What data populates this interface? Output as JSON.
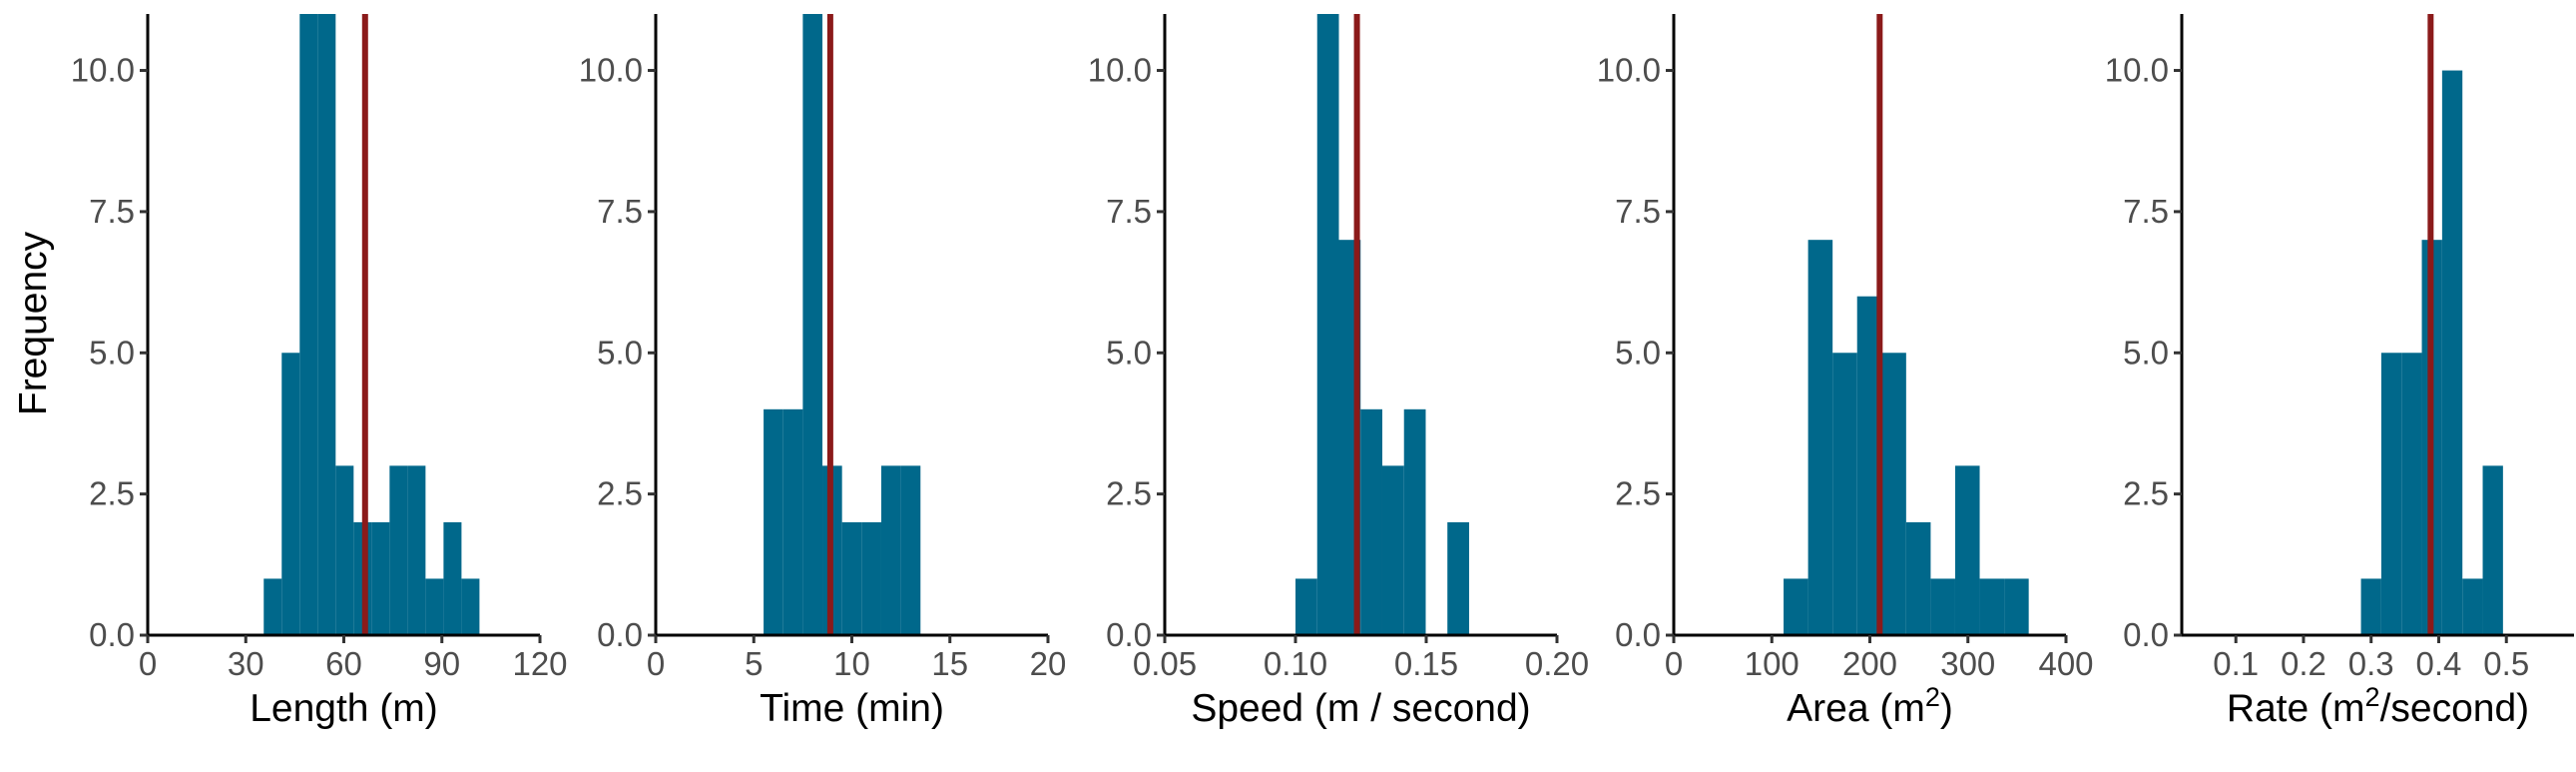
{
  "chart_data": {
    "type": "bar",
    "ylabel": "Frequency",
    "ylim": [
      0,
      11
    ],
    "yticks": [
      0,
      2.5,
      5,
      7.5,
      10
    ],
    "ytick_labels": [
      "0.0",
      "2.5",
      "5.0",
      "7.5",
      "10.0"
    ],
    "colors": {
      "bar": "#00688b",
      "reference_line": "#8b1a1a"
    },
    "panels": [
      {
        "xlabel": "Length (m)",
        "xlim": [
          0,
          120
        ],
        "xticks": [
          0,
          30,
          60,
          90,
          120
        ],
        "xtick_labels": [
          "0",
          "30",
          "60",
          "90",
          "120"
        ],
        "bin_width": 5.5,
        "bins": [
          {
            "x0": 35.5,
            "count": 1
          },
          {
            "x0": 41.0,
            "count": 5
          },
          {
            "x0": 46.5,
            "count": 11
          },
          {
            "x0": 52.0,
            "count": 11
          },
          {
            "x0": 57.5,
            "count": 3
          },
          {
            "x0": 63.0,
            "count": 2
          },
          {
            "x0": 68.5,
            "count": 2
          },
          {
            "x0": 74.0,
            "count": 3
          },
          {
            "x0": 79.5,
            "count": 3
          },
          {
            "x0": 85.0,
            "count": 1
          },
          {
            "x0": 90.5,
            "count": 2
          },
          {
            "x0": 96.0,
            "count": 1
          }
        ],
        "mean": 66.5
      },
      {
        "xlabel": "Time (min)",
        "xlim": [
          0,
          20
        ],
        "xticks": [
          0,
          5,
          10,
          15,
          20
        ],
        "xtick_labels": [
          "0",
          "5",
          "10",
          "15",
          "20"
        ],
        "bin_width": 1.0,
        "bins": [
          {
            "x0": 5.5,
            "count": 4
          },
          {
            "x0": 6.5,
            "count": 4
          },
          {
            "x0": 7.5,
            "count": 11
          },
          {
            "x0": 8.5,
            "count": 3
          },
          {
            "x0": 9.5,
            "count": 2
          },
          {
            "x0": 10.5,
            "count": 2
          },
          {
            "x0": 11.5,
            "count": 3
          },
          {
            "x0": 12.5,
            "count": 3
          }
        ],
        "mean": 8.9
      },
      {
        "xlabel": "Speed (m / second)",
        "xlim": [
          0.05,
          0.2
        ],
        "xticks": [
          0.05,
          0.1,
          0.15,
          0.2
        ],
        "xtick_labels": [
          "0.05",
          "0.10",
          "0.15",
          "0.20"
        ],
        "bin_width": 0.0083,
        "bins": [
          {
            "x0": 0.1,
            "count": 1
          },
          {
            "x0": 0.1083,
            "count": 11
          },
          {
            "x0": 0.1166,
            "count": 7
          },
          {
            "x0": 0.1249,
            "count": 4
          },
          {
            "x0": 0.1332,
            "count": 3
          },
          {
            "x0": 0.1415,
            "count": 4
          },
          {
            "x0": 0.1498,
            "count": 0
          },
          {
            "x0": 0.1581,
            "count": 2
          }
        ],
        "mean": 0.1235
      },
      {
        "xlabel": "Area (m²)",
        "xlabel_parts": [
          "Area (m",
          "2",
          ")"
        ],
        "xlim": [
          0,
          400
        ],
        "xticks": [
          0,
          100,
          200,
          300,
          400
        ],
        "xtick_labels": [
          "0",
          "100",
          "200",
          "300",
          "400"
        ],
        "bin_width": 25,
        "bins": [
          {
            "x0": 112,
            "count": 1
          },
          {
            "x0": 137,
            "count": 7
          },
          {
            "x0": 162,
            "count": 5
          },
          {
            "x0": 187,
            "count": 6
          },
          {
            "x0": 212,
            "count": 5
          },
          {
            "x0": 237,
            "count": 2
          },
          {
            "x0": 262,
            "count": 1
          },
          {
            "x0": 287,
            "count": 3
          },
          {
            "x0": 312,
            "count": 1
          },
          {
            "x0": 337,
            "count": 1
          }
        ],
        "mean": 210
      },
      {
        "xlabel": "Rate (m²/second)",
        "xlabel_parts": [
          "Rate (m",
          "2",
          "/second)"
        ],
        "xlim": [
          0.02,
          0.6
        ],
        "xticks": [
          0.1,
          0.2,
          0.3,
          0.4,
          0.5
        ],
        "xtick_labels": [
          "0.1",
          "0.2",
          "0.3",
          "0.4",
          "0.5"
        ],
        "bin_width": 0.03,
        "bins": [
          {
            "x0": 0.285,
            "count": 1
          },
          {
            "x0": 0.315,
            "count": 5
          },
          {
            "x0": 0.345,
            "count": 5
          },
          {
            "x0": 0.375,
            "count": 7
          },
          {
            "x0": 0.405,
            "count": 10
          },
          {
            "x0": 0.435,
            "count": 1
          },
          {
            "x0": 0.465,
            "count": 3
          }
        ],
        "mean": 0.388
      }
    ]
  }
}
